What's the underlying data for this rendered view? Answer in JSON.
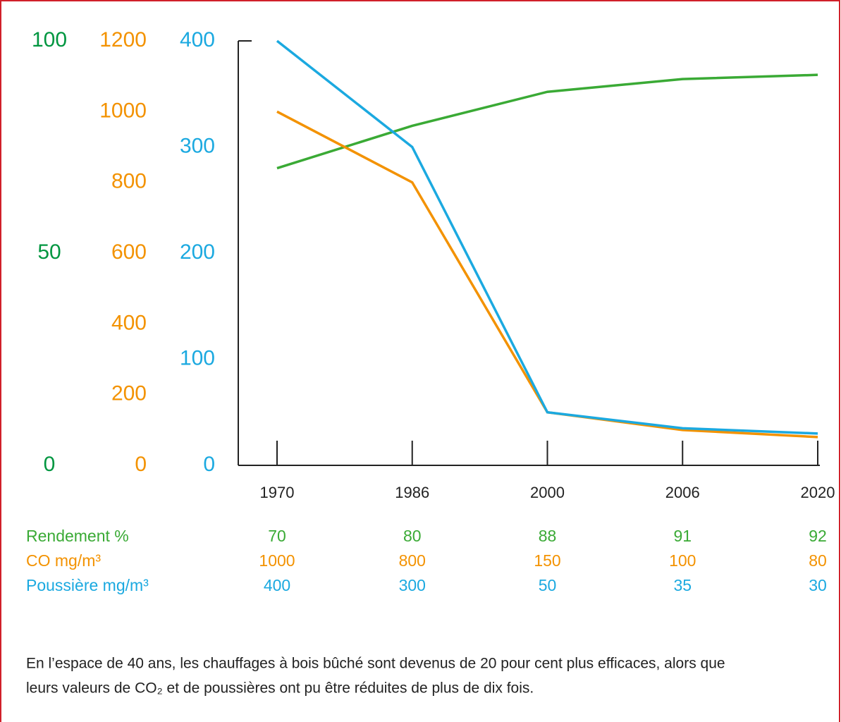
{
  "chart_data": {
    "type": "line",
    "categories": [
      "1970",
      "1986",
      "2000",
      "2006",
      "2020"
    ],
    "series": [
      {
        "name": "Rendement %",
        "color": "#3aaa35",
        "values": [
          70,
          80,
          88,
          91,
          92
        ],
        "ylim": [
          0,
          100
        ],
        "yticks": [
          0,
          50,
          100
        ]
      },
      {
        "name": "CO mg/m³",
        "color": "#f39200",
        "values": [
          1000,
          800,
          150,
          100,
          80
        ],
        "ylim": [
          0,
          1200
        ],
        "yticks": [
          0,
          200,
          400,
          600,
          800,
          1000,
          1200
        ]
      },
      {
        "name": "Poussière mg/m³",
        "color": "#1ba9e0",
        "values": [
          400,
          300,
          50,
          35,
          30
        ],
        "ylim": [
          0,
          400
        ],
        "yticks": [
          0,
          100,
          200,
          300,
          400
        ]
      }
    ]
  },
  "caption": [
    "En l’espace de 40 ans, les chauffages à bois bûché sont devenus de 20 pour cent plus efficaces, alors que",
    "leurs valeurs de CO₂ et de poussières ont pu être réduites de plus de dix fois."
  ]
}
